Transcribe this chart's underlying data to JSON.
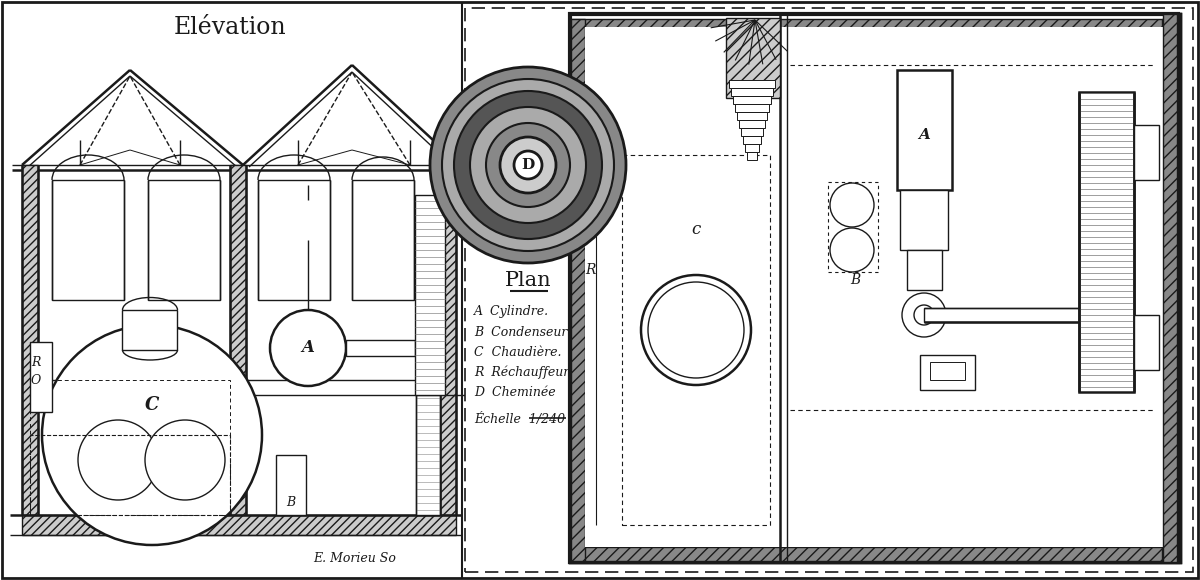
{
  "bg_color": "#ffffff",
  "line_color": "#1a1a1a",
  "title_elevation": "Elévation",
  "title_plan": "Plan",
  "legend": [
    "A  Cylindre.",
    "B  Condenseur",
    "C  Chaudière.",
    "R  Réchauffeur",
    "D  Cheminée"
  ],
  "echelle_text": "Échelle  1/240",
  "signature": "E. Morieu So",
  "lw": 1.0,
  "lw2": 1.8,
  "lw3": 2.5
}
